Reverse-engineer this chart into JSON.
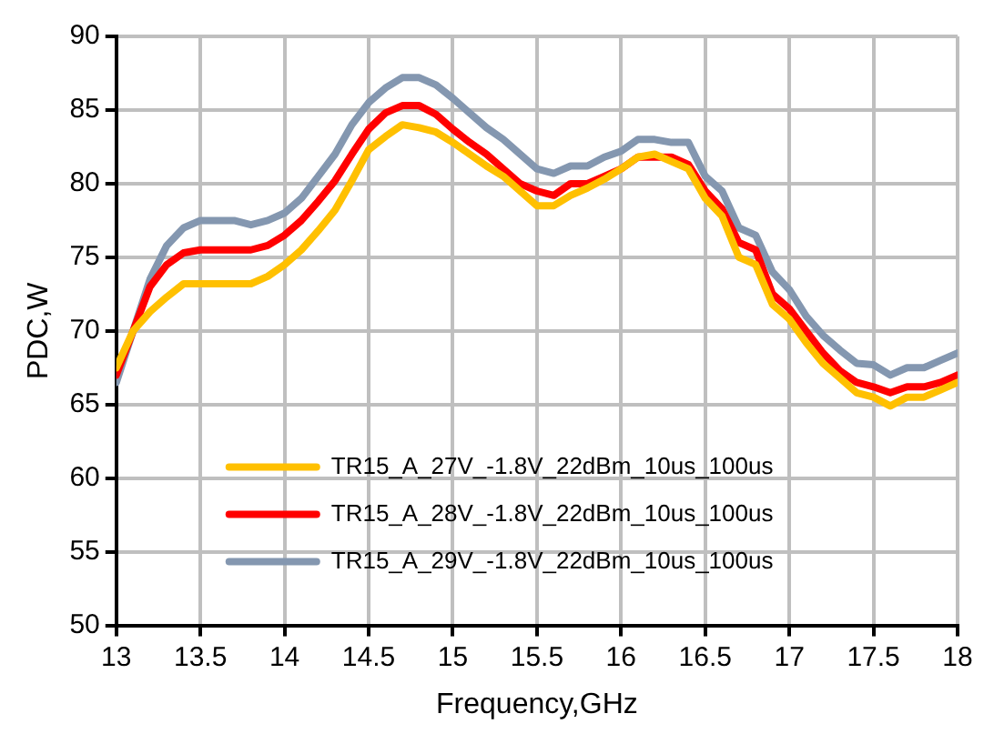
{
  "chart_data": {
    "type": "line",
    "xlabel": "Frequency,GHz",
    "ylabel": "PDC,W",
    "x": [
      13,
      13.1,
      13.2,
      13.3,
      13.4,
      13.5,
      13.6,
      13.7,
      13.8,
      13.9,
      14,
      14.1,
      14.2,
      14.3,
      14.4,
      14.5,
      14.6,
      14.7,
      14.8,
      14.9,
      15,
      15.1,
      15.2,
      15.3,
      15.4,
      15.5,
      15.6,
      15.7,
      15.8,
      15.9,
      16,
      16.1,
      16.2,
      16.3,
      16.4,
      16.5,
      16.6,
      16.7,
      16.8,
      16.9,
      17,
      17.1,
      17.2,
      17.3,
      17.4,
      17.5,
      17.6,
      17.7,
      17.8,
      17.9,
      18
    ],
    "series": [
      {
        "name": "TR15_A_27V_-1.8V_22dBm_10us_100us",
        "color": "#ffc000",
        "values": [
          67.5,
          70,
          71.3,
          72.3,
          73.2,
          73.2,
          73.2,
          73.2,
          73.2,
          73.7,
          74.5,
          75.5,
          76.8,
          78.2,
          80.2,
          82.3,
          83.2,
          84,
          83.8,
          83.5,
          82.8,
          82,
          81.2,
          80.5,
          79.5,
          78.5,
          78.5,
          79.2,
          79.7,
          80.3,
          81,
          81.8,
          82,
          81.5,
          81,
          79,
          77.8,
          75,
          74.5,
          71.8,
          70.8,
          69.2,
          67.8,
          66.8,
          65.8,
          65.5,
          64.9,
          65.5,
          65.5,
          66,
          66.5
        ]
      },
      {
        "name": "TR15_A_28V_-1.8V_22dBm_10us_100us",
        "color": "#ff0000",
        "values": [
          67,
          70,
          73,
          74.5,
          75.3,
          75.5,
          75.5,
          75.5,
          75.5,
          75.8,
          76.5,
          77.5,
          78.8,
          80.2,
          82,
          83.7,
          84.8,
          85.3,
          85.3,
          84.7,
          83.7,
          82.8,
          82,
          81,
          80,
          79.5,
          79.2,
          80,
          80,
          80.5,
          81,
          81.8,
          81.8,
          81.8,
          81.3,
          79.5,
          78.3,
          76,
          75.5,
          72.5,
          71.5,
          70,
          68.5,
          67.3,
          66.5,
          66.2,
          65.8,
          66.2,
          66.2,
          66.5,
          67
        ]
      },
      {
        "name": "TR15_A_29V_-1.8V_22dBm_10us_100us",
        "color": "#8497b0",
        "values": [
          66.5,
          70,
          73.5,
          75.8,
          77,
          77.5,
          77.5,
          77.5,
          77.2,
          77.5,
          78,
          79,
          80.5,
          82,
          84,
          85.5,
          86.5,
          87.2,
          87.2,
          86.7,
          85.8,
          84.8,
          83.8,
          83,
          82,
          81,
          80.7,
          81.2,
          81.2,
          81.8,
          82.2,
          83,
          83,
          82.8,
          82.8,
          80.5,
          79.5,
          77,
          76.5,
          74,
          72.8,
          71,
          69.7,
          68.7,
          67.8,
          67.7,
          67,
          67.5,
          67.5,
          68,
          68.5
        ]
      }
    ],
    "xlim": [
      13,
      18
    ],
    "xticks": [
      13,
      13.5,
      14,
      14.5,
      15,
      15.5,
      16,
      16.5,
      17,
      17.5,
      18
    ],
    "ylim": [
      50,
      90
    ],
    "yticks": [
      50,
      55,
      60,
      65,
      70,
      75,
      80,
      85,
      90
    ],
    "grid": true,
    "legend": "bottom",
    "marker": "none",
    "line_style": "solid"
  }
}
